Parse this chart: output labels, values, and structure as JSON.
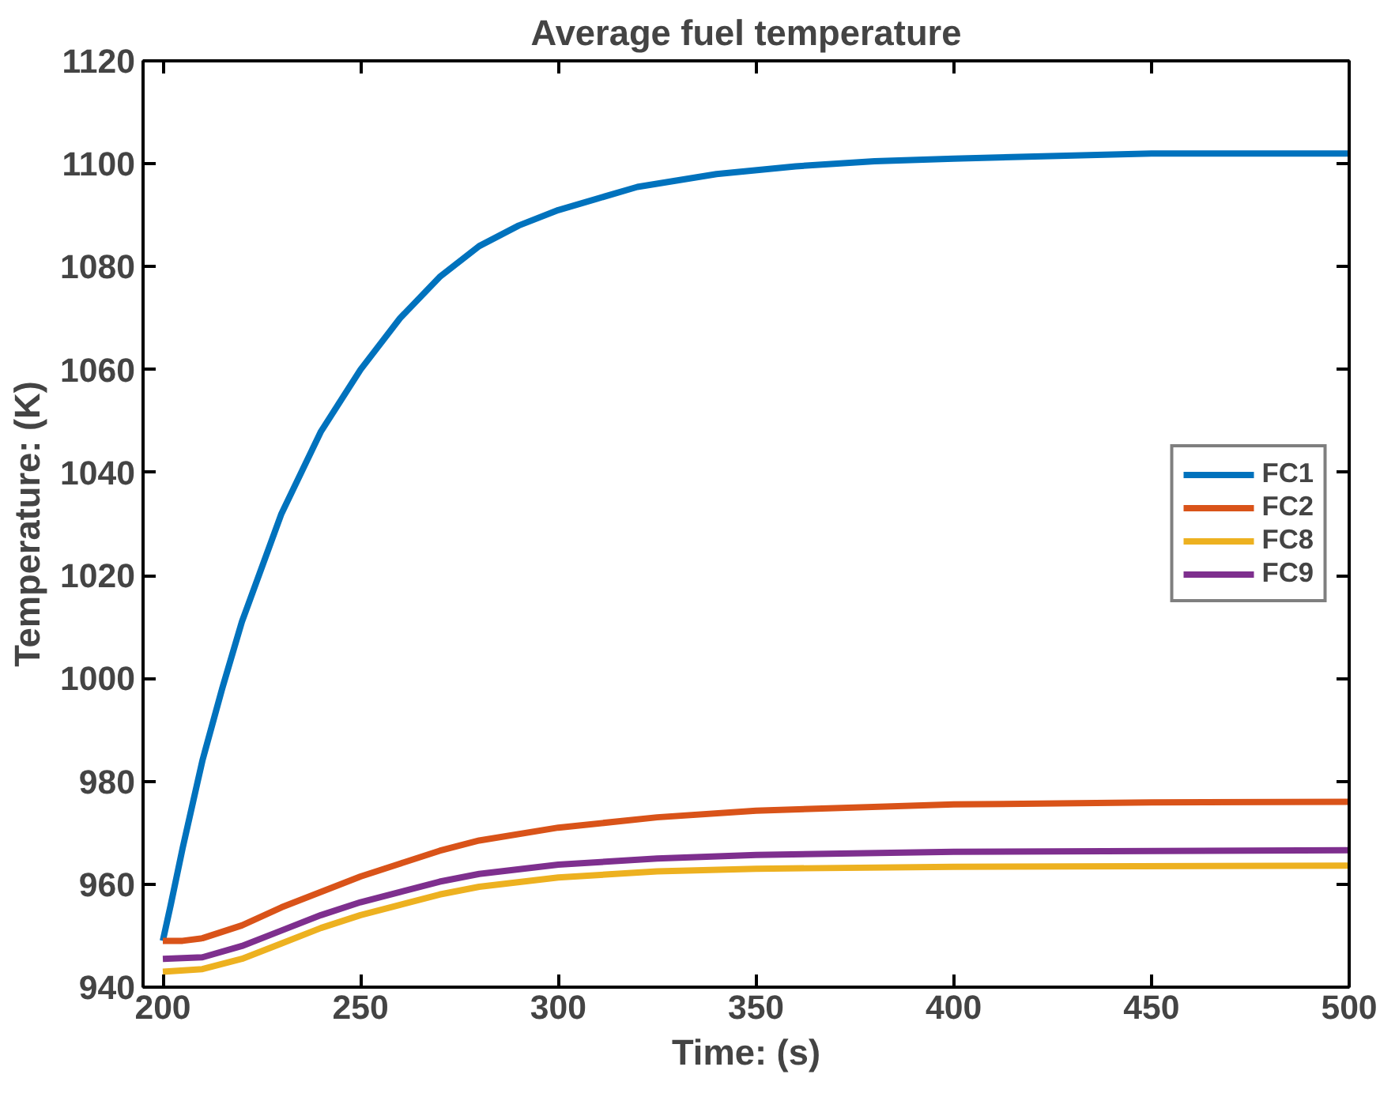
{
  "chart_data": {
    "type": "line",
    "title": "Average fuel temperature",
    "xlabel": "Time: (s)",
    "ylabel": "Temperature: (K)",
    "xlim": [
      195,
      500
    ],
    "xticks": [
      200,
      250,
      300,
      350,
      400,
      450,
      500
    ],
    "ylim": [
      940,
      1120
    ],
    "yticks": [
      940,
      960,
      980,
      1000,
      1020,
      1040,
      1060,
      1080,
      1100,
      1120
    ],
    "grid": false,
    "legend": "right",
    "line_style": "solid",
    "marker": "none",
    "series": [
      {
        "name": "FC1",
        "color": "#0072bd",
        "x": [
          200,
          202,
          205,
          210,
          215,
          220,
          230,
          240,
          250,
          260,
          270,
          280,
          290,
          300,
          320,
          340,
          360,
          380,
          400,
          450,
          500
        ],
        "values": [
          949,
          956,
          967,
          984,
          998,
          1011,
          1032,
          1048,
          1060,
          1070,
          1078,
          1084,
          1088,
          1091,
          1095.5,
          1098,
          1099.5,
          1100.5,
          1101,
          1102,
          1102
        ]
      },
      {
        "name": "FC2",
        "color": "#d95319",
        "x": [
          200,
          205,
          210,
          220,
          230,
          240,
          250,
          260,
          270,
          280,
          300,
          325,
          350,
          400,
          450,
          500
        ],
        "values": [
          949,
          949,
          949.5,
          952,
          955.5,
          958.5,
          961.5,
          964,
          966.5,
          968.5,
          971,
          973,
          974.3,
          975.5,
          975.9,
          976
        ]
      },
      {
        "name": "FC8",
        "color": "#edb120",
        "x": [
          200,
          210,
          220,
          230,
          240,
          250,
          260,
          270,
          280,
          300,
          325,
          350,
          400,
          500
        ],
        "values": [
          943,
          943.5,
          945.5,
          948.5,
          951.5,
          954,
          956,
          958,
          959.5,
          961.3,
          962.5,
          963,
          963.4,
          963.6
        ]
      },
      {
        "name": "FC9",
        "color": "#7e2f8e",
        "x": [
          200,
          210,
          220,
          230,
          240,
          250,
          260,
          270,
          280,
          300,
          325,
          350,
          400,
          500
        ],
        "values": [
          945.5,
          945.8,
          948,
          951,
          954,
          956.5,
          958.5,
          960.5,
          962,
          963.8,
          965,
          965.7,
          966.3,
          966.6
        ]
      }
    ]
  }
}
